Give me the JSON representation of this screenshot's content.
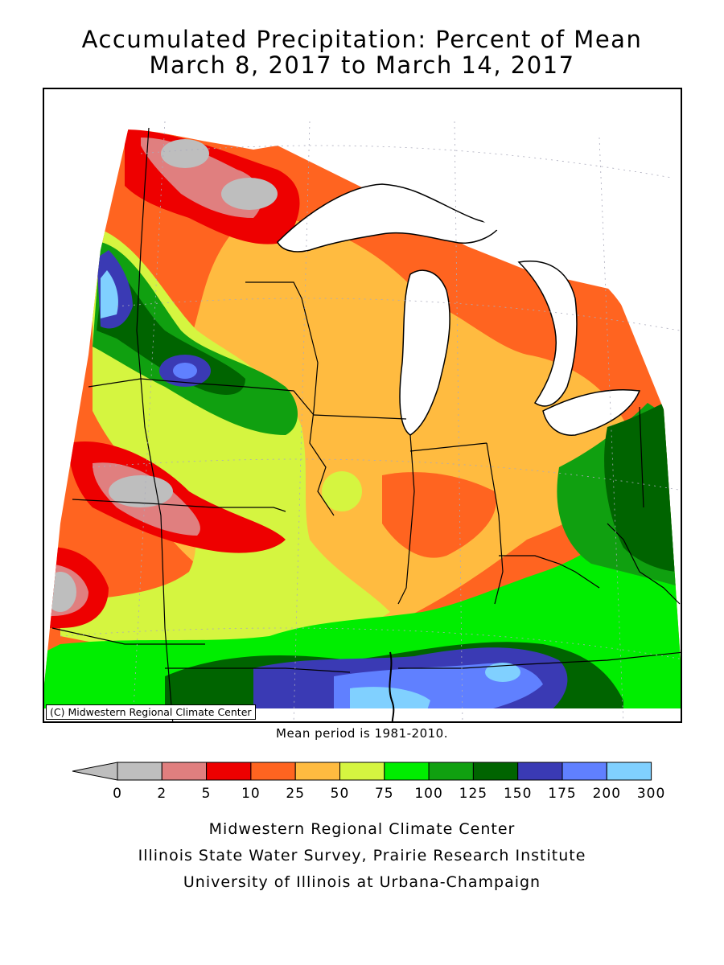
{
  "title": {
    "line1": "Accumulated Precipitation: Percent of Mean",
    "line2": "March 8, 2017 to March 14, 2017"
  },
  "map": {
    "copyright": "(C) Midwestern Regional Climate Center",
    "mean_period_note": "Mean period is 1981-2010."
  },
  "legend": {
    "tick_labels": [
      "0",
      "2",
      "5",
      "10",
      "25",
      "50",
      "75",
      "100",
      "125",
      "150",
      "175",
      "200",
      "300"
    ],
    "colors": [
      "#bebebe",
      "#e07f7f",
      "#ee0000",
      "#ff6420",
      "#ffbb40",
      "#d5f540",
      "#00ee00",
      "#10a010",
      "#006400",
      "#3a3ab4",
      "#6080ff",
      "#80d0ff"
    ],
    "below_range_color": "#bebebe"
  },
  "credits": {
    "line1": "Midwestern Regional Climate Center",
    "line2": "Illinois State Water Survey, Prairie Research Institute",
    "line3": "University of Illinois at Urbana-Champaign"
  }
}
